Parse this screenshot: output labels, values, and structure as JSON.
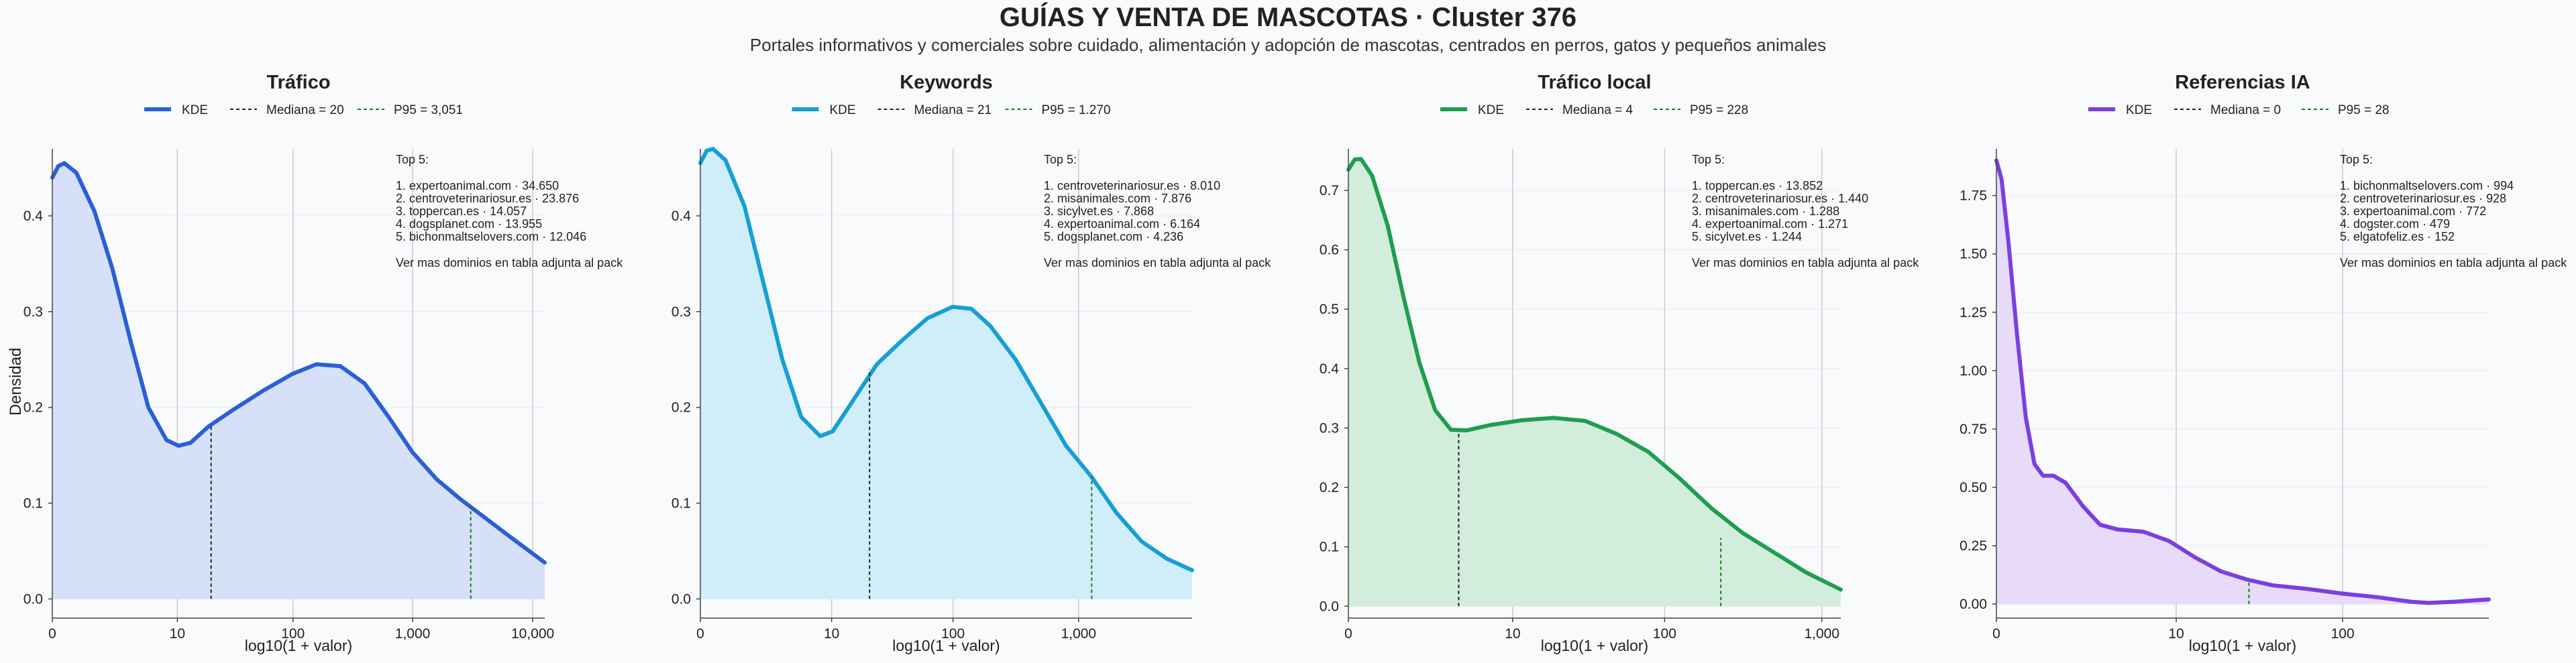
{
  "title": "GUÍAS Y VENTA DE MASCOTAS · Cluster 376",
  "subtitle": "Portales informativos y comerciales sobre cuidado, alimentación y adopción de mascotas, centrados en perros, gatos y pequeños animales",
  "ylabel": "Densidad",
  "chart_data": [
    {
      "type": "area",
      "title": "Tráfico",
      "xlabel": "log10(1 + valor)",
      "ylabel": "Densidad",
      "color": "#2a5fd8",
      "fill": "#d6e0f8",
      "xlim": [
        0,
        4.1
      ],
      "ylim": [
        -0.02,
        0.47
      ],
      "xticks": [
        {
          "x": 0,
          "label": "0"
        },
        {
          "x": 1.041,
          "label": "10"
        },
        {
          "x": 2.004,
          "label": "100"
        },
        {
          "x": 3.0,
          "label": "1,000"
        },
        {
          "x": 4.0,
          "label": "10,000"
        }
      ],
      "yticks": [
        0,
        0.1,
        0.2,
        0.3,
        0.4
      ],
      "ytick_labels": [
        "0.0",
        "0.1",
        "0.2",
        "0.3",
        "0.4"
      ],
      "legend": [
        "KDE",
        "Mediana = 20",
        "P95 = 3,051"
      ],
      "median": {
        "x": 1.322,
        "y": 0.182
      },
      "p95": {
        "x": 3.484,
        "y": 0.1
      },
      "points": [
        [
          0,
          0.44
        ],
        [
          0.05,
          0.452
        ],
        [
          0.1,
          0.455
        ],
        [
          0.2,
          0.445
        ],
        [
          0.35,
          0.405
        ],
        [
          0.5,
          0.345
        ],
        [
          0.65,
          0.27
        ],
        [
          0.8,
          0.2
        ],
        [
          0.95,
          0.166
        ],
        [
          1.05,
          0.16
        ],
        [
          1.15,
          0.163
        ],
        [
          1.3,
          0.18
        ],
        [
          1.5,
          0.197
        ],
        [
          1.75,
          0.217
        ],
        [
          2.0,
          0.235
        ],
        [
          2.2,
          0.245
        ],
        [
          2.4,
          0.243
        ],
        [
          2.6,
          0.225
        ],
        [
          2.8,
          0.19
        ],
        [
          3.0,
          0.153
        ],
        [
          3.2,
          0.125
        ],
        [
          3.4,
          0.104
        ],
        [
          3.6,
          0.085
        ],
        [
          3.8,
          0.066
        ],
        [
          4.1,
          0.038
        ]
      ],
      "top5_header": "Top 5:",
      "top5": [
        "1. expertoanimal.com · 34.650",
        "2. centroveterinariosur.es · 23.876",
        "3. toppercan.es · 14.057",
        "4. dogsplanet.com · 13.955",
        "5. bichonmaltselovers.com · 12.046"
      ],
      "top5_note": "Ver mas dominios en tabla adjunta al pack"
    },
    {
      "type": "area",
      "title": "Keywords",
      "xlabel": "log10(1 + valor)",
      "ylabel": "",
      "color": "#169fd6",
      "fill": "#d0eef9",
      "xlim": [
        0,
        3.9
      ],
      "ylim": [
        -0.02,
        0.47
      ],
      "xticks": [
        {
          "x": 0,
          "label": "0"
        },
        {
          "x": 1.041,
          "label": "10"
        },
        {
          "x": 2.004,
          "label": "100"
        },
        {
          "x": 3.0,
          "label": "1,000"
        }
      ],
      "yticks": [
        0,
        0.1,
        0.2,
        0.3,
        0.4
      ],
      "ytick_labels": [
        "0.0",
        "0.1",
        "0.2",
        "0.3",
        "0.4"
      ],
      "legend": [
        "KDE",
        "Mediana = 21",
        "P95 = 1.270"
      ],
      "median": {
        "x": 1.342,
        "y": 0.24
      },
      "p95": {
        "x": 3.104,
        "y": 0.128
      },
      "points": [
        [
          0,
          0.455
        ],
        [
          0.05,
          0.468
        ],
        [
          0.1,
          0.47
        ],
        [
          0.2,
          0.458
        ],
        [
          0.35,
          0.41
        ],
        [
          0.5,
          0.33
        ],
        [
          0.65,
          0.25
        ],
        [
          0.8,
          0.19
        ],
        [
          0.95,
          0.17
        ],
        [
          1.05,
          0.175
        ],
        [
          1.2,
          0.205
        ],
        [
          1.4,
          0.245
        ],
        [
          1.6,
          0.27
        ],
        [
          1.8,
          0.293
        ],
        [
          2.0,
          0.305
        ],
        [
          2.15,
          0.303
        ],
        [
          2.3,
          0.285
        ],
        [
          2.5,
          0.25
        ],
        [
          2.7,
          0.205
        ],
        [
          2.9,
          0.16
        ],
        [
          3.1,
          0.128
        ],
        [
          3.3,
          0.09
        ],
        [
          3.5,
          0.06
        ],
        [
          3.7,
          0.042
        ],
        [
          3.9,
          0.03
        ]
      ],
      "top5_header": "Top 5:",
      "top5": [
        "1. centroveterinariosur.es · 8.010",
        "2. misanimales.com · 7.876",
        "3. sicylvet.es · 7.868",
        "4. expertoanimal.com · 6.164",
        "5. dogsplanet.com · 4.236"
      ],
      "top5_note": "Ver mas dominios en tabla adjunta al pack"
    },
    {
      "type": "area",
      "title": "Tráfico local",
      "xlabel": "log10(1 + valor)",
      "ylabel": "",
      "color": "#1f9e4f",
      "fill": "#d3eddc",
      "xlim": [
        0,
        3.12
      ],
      "ylim": [
        -0.02,
        0.77
      ],
      "xticks": [
        {
          "x": 0,
          "label": "0"
        },
        {
          "x": 1.041,
          "label": "10"
        },
        {
          "x": 2.004,
          "label": "100"
        },
        {
          "x": 3.0,
          "label": "1,000"
        }
      ],
      "yticks": [
        0,
        0.1,
        0.2,
        0.3,
        0.4,
        0.5,
        0.6,
        0.7
      ],
      "ytick_labels": [
        "0.0",
        "0.1",
        "0.2",
        "0.3",
        "0.4",
        "0.5",
        "0.6",
        "0.7"
      ],
      "legend": [
        "KDE",
        "Mediana = 4",
        "P95 = 228"
      ],
      "median": {
        "x": 0.699,
        "y": 0.295
      },
      "p95": {
        "x": 2.36,
        "y": 0.115
      },
      "points": [
        [
          0,
          0.735
        ],
        [
          0.04,
          0.752
        ],
        [
          0.08,
          0.753
        ],
        [
          0.15,
          0.725
        ],
        [
          0.25,
          0.64
        ],
        [
          0.35,
          0.52
        ],
        [
          0.45,
          0.41
        ],
        [
          0.55,
          0.33
        ],
        [
          0.65,
          0.297
        ],
        [
          0.75,
          0.296
        ],
        [
          0.9,
          0.305
        ],
        [
          1.1,
          0.313
        ],
        [
          1.3,
          0.317
        ],
        [
          1.5,
          0.312
        ],
        [
          1.7,
          0.29
        ],
        [
          1.9,
          0.26
        ],
        [
          2.1,
          0.215
        ],
        [
          2.3,
          0.165
        ],
        [
          2.5,
          0.123
        ],
        [
          2.7,
          0.09
        ],
        [
          2.9,
          0.057
        ],
        [
          3.12,
          0.028
        ]
      ],
      "top5_header": "Top 5:",
      "top5": [
        "1. toppercan.es · 13.852",
        "2. centroveterinariosur.es · 1.440",
        "3. misanimales.com · 1.288",
        "4. expertoanimal.com · 1.271",
        "5. sicylvet.es · 1.244"
      ],
      "top5_note": "Ver mas dominios en tabla adjunta al pack"
    },
    {
      "type": "area",
      "title": "Referencias IA",
      "xlabel": "log10(1 + valor)",
      "ylabel": "",
      "color": "#7b3fe0",
      "fill": "#e7dbf9",
      "xlim": [
        0,
        2.85
      ],
      "ylim": [
        -0.06,
        1.95
      ],
      "xticks": [
        {
          "x": 0,
          "label": "0"
        },
        {
          "x": 1.041,
          "label": "10"
        },
        {
          "x": 2.004,
          "label": "100"
        }
      ],
      "yticks": [
        0,
        0.25,
        0.5,
        0.75,
        1.0,
        1.25,
        1.5,
        1.75
      ],
      "ytick_labels": [
        "0.00",
        "0.25",
        "0.50",
        "0.75",
        "1.00",
        "1.25",
        "1.50",
        "1.75"
      ],
      "legend": [
        "KDE",
        "Mediana = 0",
        "P95 = 28"
      ],
      "median": {
        "x": 0,
        "y": 1.9
      },
      "p95": {
        "x": 1.462,
        "y": 0.105
      },
      "points": [
        [
          0,
          1.9
        ],
        [
          0.03,
          1.82
        ],
        [
          0.07,
          1.55
        ],
        [
          0.12,
          1.15
        ],
        [
          0.17,
          0.8
        ],
        [
          0.22,
          0.6
        ],
        [
          0.27,
          0.55
        ],
        [
          0.33,
          0.55
        ],
        [
          0.4,
          0.52
        ],
        [
          0.5,
          0.42
        ],
        [
          0.6,
          0.34
        ],
        [
          0.7,
          0.32
        ],
        [
          0.85,
          0.31
        ],
        [
          1.0,
          0.27
        ],
        [
          1.15,
          0.2
        ],
        [
          1.3,
          0.14
        ],
        [
          1.45,
          0.105
        ],
        [
          1.6,
          0.08
        ],
        [
          1.8,
          0.065
        ],
        [
          2.0,
          0.045
        ],
        [
          2.2,
          0.03
        ],
        [
          2.4,
          0.01
        ],
        [
          2.5,
          0.005
        ],
        [
          2.65,
          0.01
        ],
        [
          2.85,
          0.02
        ]
      ],
      "top5_header": "Top 5:",
      "top5": [
        "1. bichonmaltselovers.com · 994",
        "2. centroveterinariosur.es · 928",
        "3. expertoanimal.com · 772",
        "4. dogster.com · 479",
        "5. elgatofeliz.es · 152"
      ],
      "top5_note": "Ver mas dominios en tabla adjunta al pack"
    }
  ]
}
